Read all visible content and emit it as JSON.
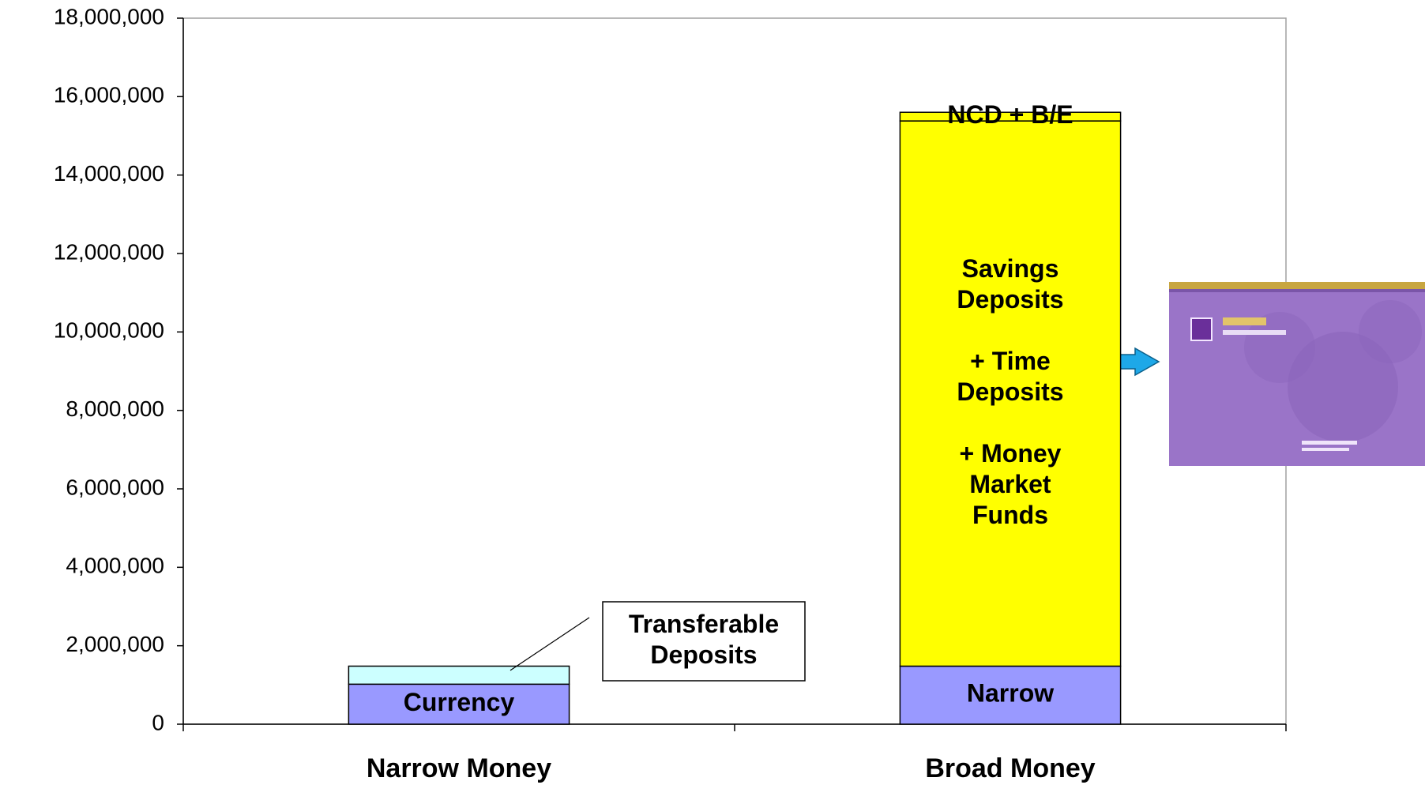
{
  "chart_data": {
    "type": "stacked_bar",
    "categories": [
      "Narrow Money",
      "Broad Money"
    ],
    "series": [
      {
        "color": "#9999ff",
        "values": [
          1020000,
          1480000
        ],
        "labels": [
          [
            [
              "Currency"
            ]
          ],
          [
            [
              "Narrow"
            ]
          ]
        ]
      },
      {
        "color": "#ccffff",
        "values": [
          460000,
          null
        ],
        "labels": [
          [
            [
              "Transferable",
              "Deposits"
            ]
          ],
          null
        ]
      },
      {
        "color": "#ffff00",
        "values": [
          null,
          13900000
        ],
        "labels": [
          null,
          [
            [
              "Savings",
              "Deposits"
            ],
            [
              "+ Time",
              "Deposits"
            ],
            [
              "+ Money",
              "Market",
              "Funds"
            ]
          ]
        ]
      },
      {
        "color": "#ffff00",
        "values": [
          null,
          220000
        ],
        "labels": [
          null,
          [
            [
              "NCD + B/E"
            ]
          ]
        ]
      }
    ],
    "ylim": [
      0,
      18000000
    ],
    "yticks": [
      0,
      {
        "value": 2000000,
        "label": "2,000,000"
      },
      {
        "value": 4000000,
        "label": "4,000,000"
      },
      {
        "value": 6000000,
        "label": "6,000,000"
      },
      {
        "value": 8000000,
        "label": "8,000,000"
      },
      {
        "value": 10000000,
        "label": "10,000,000"
      },
      {
        "value": 12000000,
        "label": "12,000,000"
      },
      {
        "value": 14000000,
        "label": "14,000,000"
      },
      {
        "value": 16000000,
        "label": "16,000,000"
      },
      {
        "value": 18000000,
        "label": "18,000,000"
      }
    ],
    "grid": false
  }
}
